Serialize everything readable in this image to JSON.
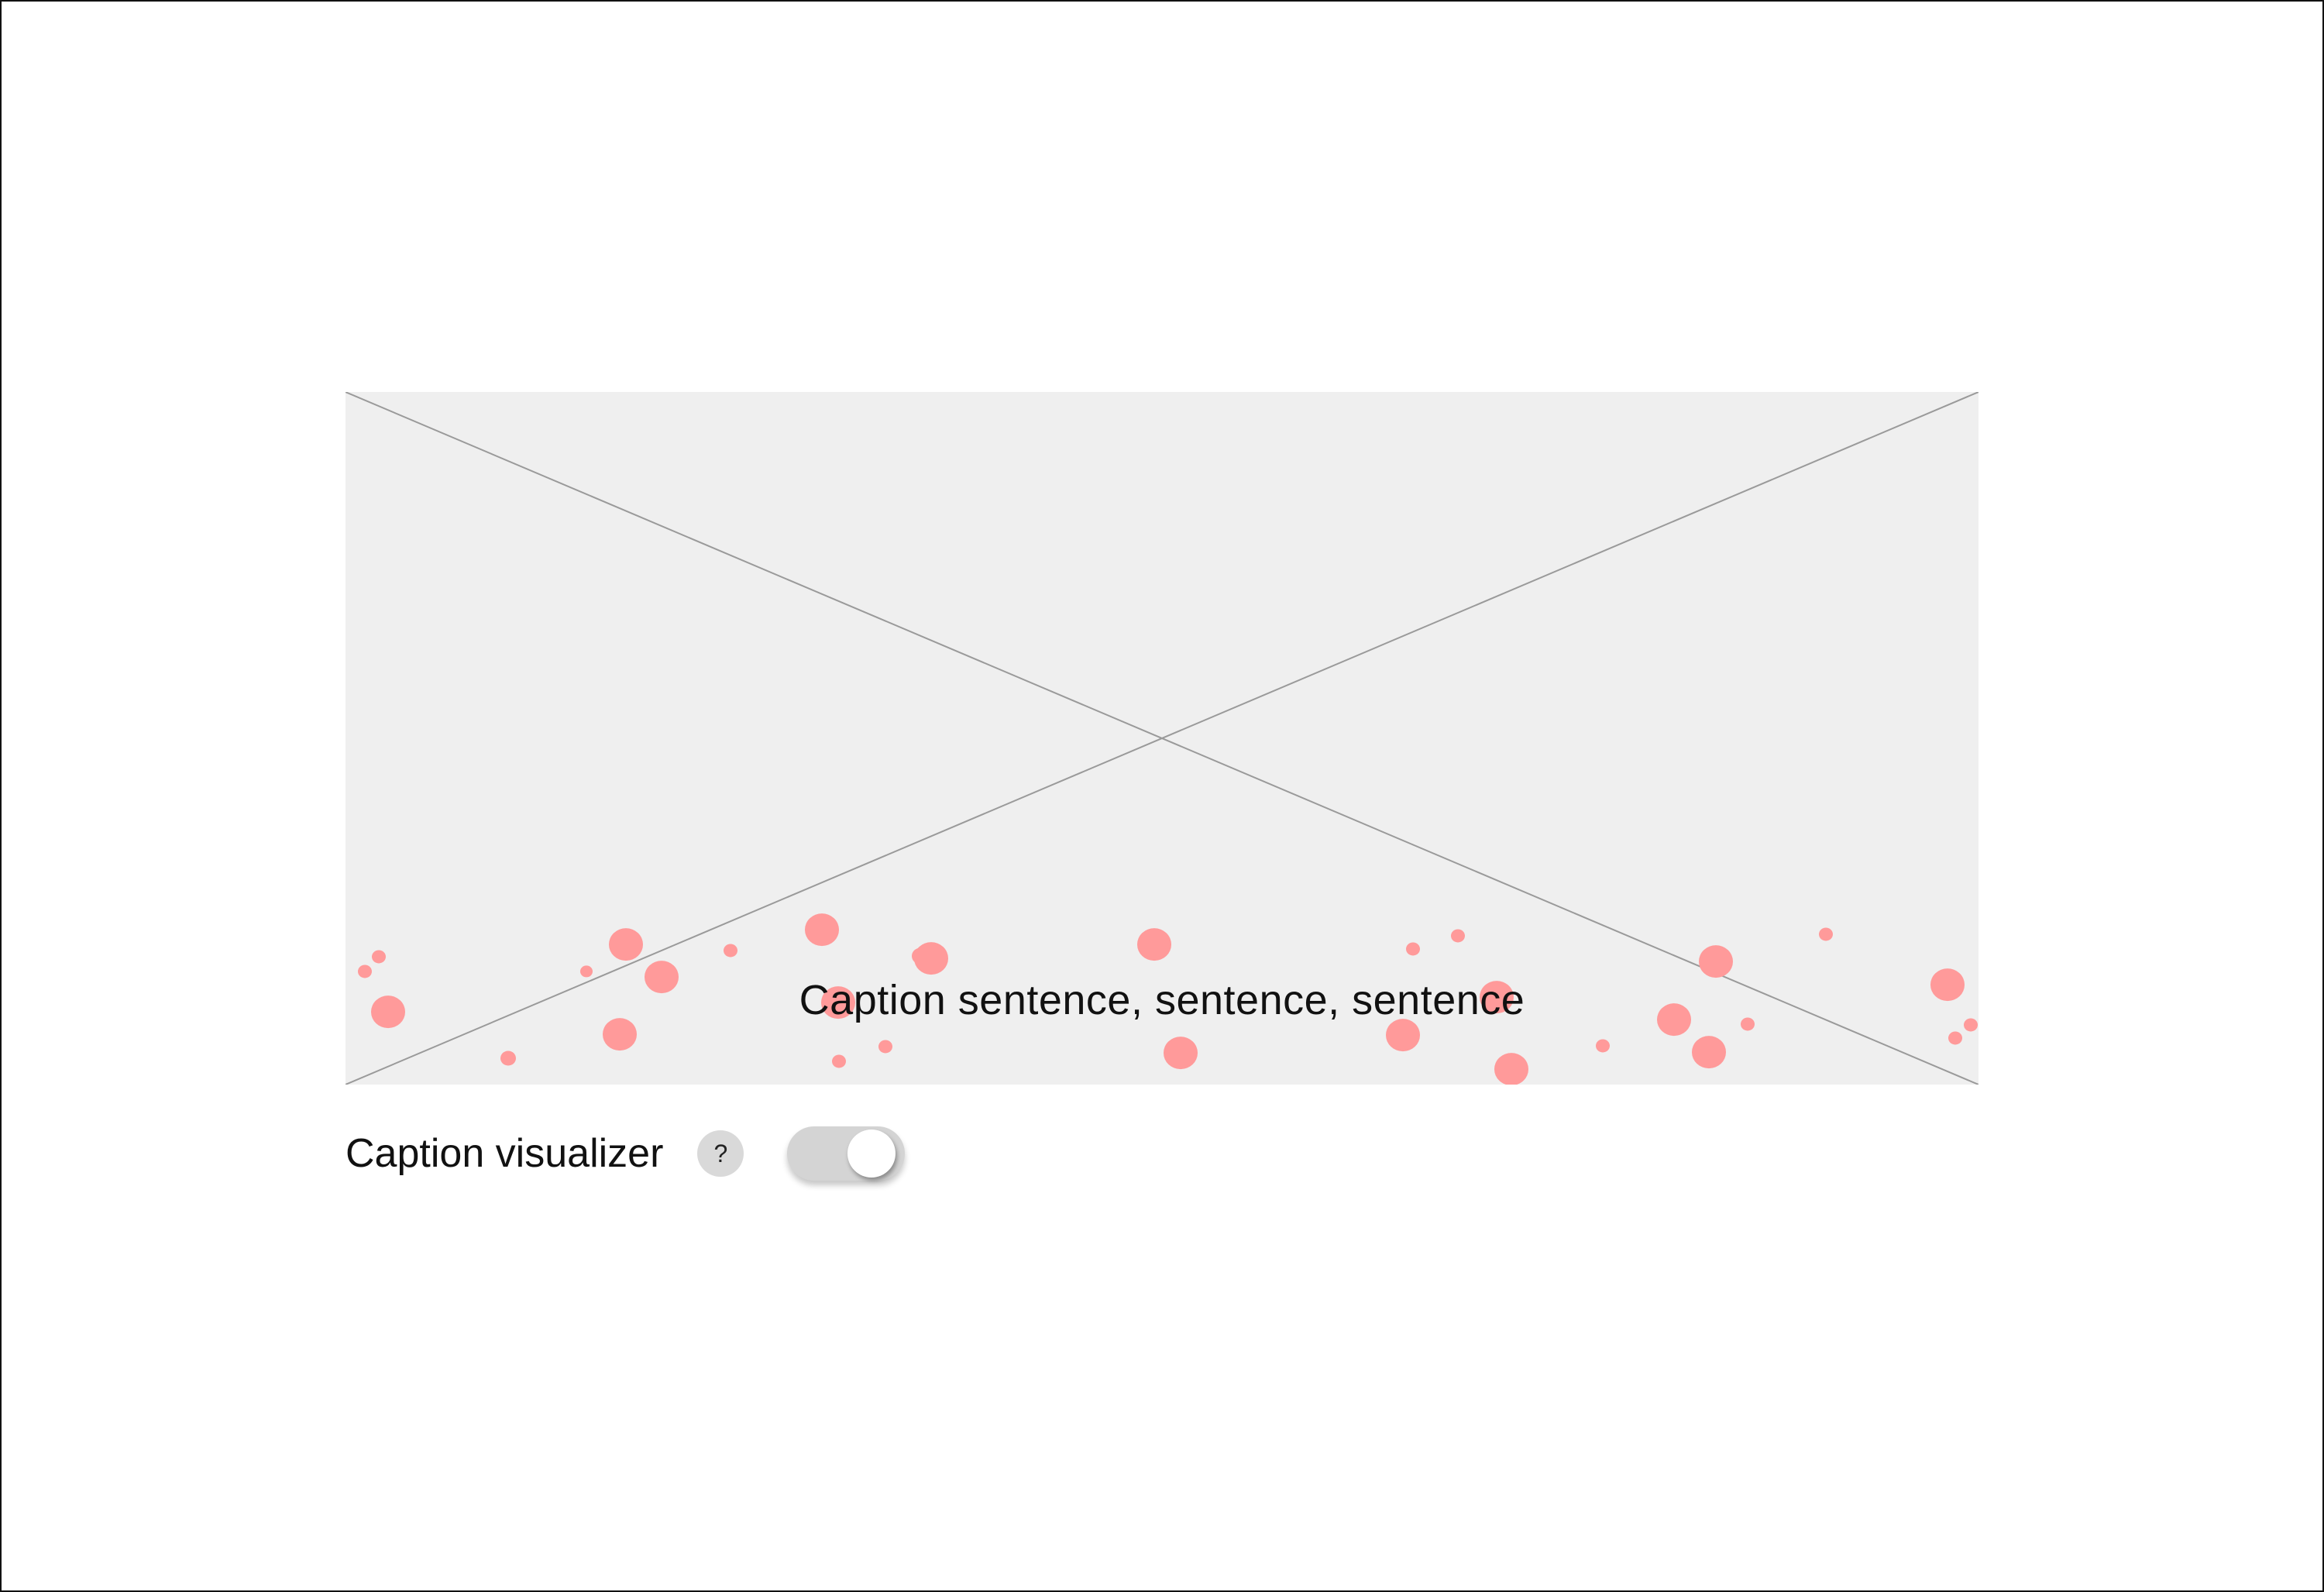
{
  "media": {
    "caption": "Caption sentence, sentence, sentence",
    "background": "#efefef",
    "cross_color": "#9a9a9a",
    "bubble_color": "#ff9a9a"
  },
  "controls": {
    "label": "Caption visualizer",
    "help_glyph": "?",
    "toggle_state": "on"
  }
}
